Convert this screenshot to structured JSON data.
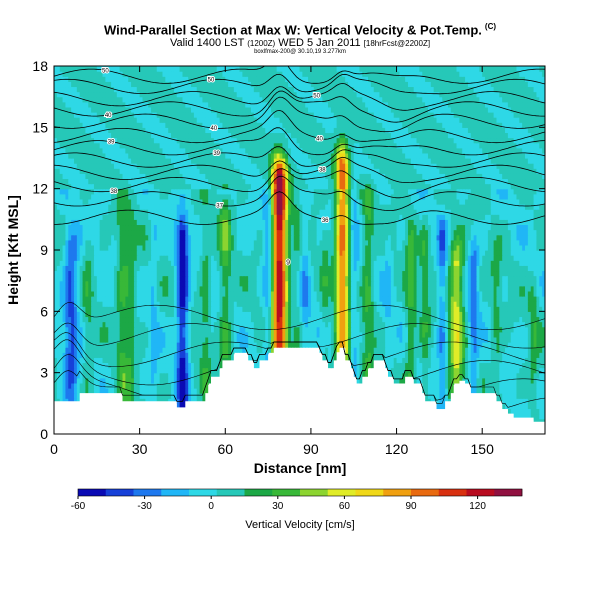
{
  "header": {
    "title": "Wind-Parallel Section at Max W: Vertical Velocity & Pot.Temp.",
    "copyright": "(C)",
    "valid_main": "Valid 1400 LST",
    "valid_z": "(1200Z)",
    "valid_date": "WED 5 Jan 2011",
    "valid_grid": "[18hrFcst@2200Z]",
    "credit": "boxlfmax-200@ 30.10,19 3.277km"
  },
  "chart_data": {
    "type": "heatmap",
    "xlabel": "Distance [nm]",
    "ylabel": "Height [Kft MSL]",
    "xlim": [
      0,
      172
    ],
    "ylim": [
      0,
      18
    ],
    "xticks": [
      0,
      30,
      60,
      90,
      120,
      150
    ],
    "yticks": [
      0,
      3,
      6,
      9,
      12,
      15,
      18
    ],
    "colorbar": {
      "label": "Vertical Velocity [cm/s]",
      "range": [
        -60,
        140
      ],
      "ticks": [
        -60,
        -30,
        0,
        30,
        60,
        90,
        120
      ],
      "colors": [
        "#0a0ab4",
        "#1640d8",
        "#1e78ee",
        "#20b6f6",
        "#2ed8e6",
        "#26c8b8",
        "#1ca846",
        "#38b838",
        "#8cd430",
        "#e0ec28",
        "#f0d818",
        "#f0a010",
        "#e86a10",
        "#d83010",
        "#b80c20",
        "#901040"
      ]
    },
    "terrain_height": [
      1.6,
      1.6,
      1.6,
      1.6,
      1.6,
      1.6,
      1.6,
      1.6,
      1.6,
      2.0,
      2.0,
      2.0,
      2.0,
      2.0,
      2.0,
      2.0,
      2.0,
      2.0,
      2.0,
      2.0,
      2.0,
      2.0,
      2.0,
      2.0,
      1.6,
      1.6,
      1.6,
      1.6,
      1.6,
      1.6,
      1.6,
      1.6,
      1.6,
      1.6,
      1.6,
      1.6,
      1.6,
      1.6,
      1.6,
      1.6,
      1.6,
      1.6,
      1.6,
      1.3,
      1.3,
      1.3,
      1.6,
      1.6,
      1.6,
      1.6,
      1.6,
      1.6,
      1.6,
      2.0,
      2.4,
      2.8,
      2.8,
      2.8,
      3.2,
      3.6,
      3.6,
      3.6,
      3.6,
      3.9,
      3.9,
      3.9,
      3.9,
      3.9,
      3.6,
      3.6,
      3.2,
      3.2,
      3.6,
      3.6,
      3.6,
      3.9,
      3.9,
      4.2,
      4.2,
      4.2,
      4.2,
      4.2,
      4.2,
      4.2,
      4.2,
      4.2,
      4.2,
      4.2,
      4.2,
      4.2,
      4.2,
      4.2,
      4.2,
      3.9,
      3.6,
      3.6,
      3.2,
      3.2,
      3.6,
      4.0,
      4.2,
      4.2,
      3.6,
      3.6,
      3.2,
      2.8,
      2.4,
      2.4,
      2.8,
      2.8,
      3.2,
      3.2,
      3.6,
      3.6,
      3.6,
      3.6,
      3.2,
      2.8,
      2.8,
      2.4,
      2.4,
      2.4,
      2.4,
      2.8,
      2.8,
      2.8,
      2.4,
      2.4,
      2.4,
      2.0,
      1.6,
      1.6,
      1.6,
      1.6,
      1.2,
      1.2,
      1.2,
      1.6,
      1.6,
      2.0,
      2.4,
      2.4,
      2.6,
      2.6,
      2.4,
      2.4,
      2.0,
      2.0,
      2.0,
      2.0,
      2.0,
      2.0,
      2.0,
      2.0,
      2.0,
      1.6,
      1.6,
      1.2,
      1.2,
      1.0,
      1.0,
      0.8,
      0.8,
      0.8,
      0.8,
      0.8,
      0.8,
      0.8,
      0.6,
      0.6,
      0.6,
      0.6
    ],
    "updrafts": [
      {
        "x": 79,
        "top": 12.3,
        "amp": 135,
        "width": 2.6
      },
      {
        "x": 101,
        "top": 13.0,
        "amp": 95,
        "width": 2.3
      },
      {
        "x": 141,
        "top": 8.3,
        "amp": 60,
        "width": 2.4
      },
      {
        "x": 60,
        "top": 10.5,
        "amp": 30,
        "width": 2.0
      },
      {
        "x": 110,
        "top": 11.0,
        "amp": 28,
        "width": 2.0
      },
      {
        "x": 24,
        "top": 10.0,
        "amp": 28,
        "width": 2.0
      },
      {
        "x": 27,
        "top": 9.5,
        "amp": 22,
        "width": 1.8
      },
      {
        "x": 53,
        "top": 9.5,
        "amp": 22,
        "width": 1.6
      },
      {
        "x": 125,
        "top": 9.5,
        "amp": 30,
        "width": 1.8
      },
      {
        "x": 85,
        "top": 10.5,
        "amp": 12,
        "width": 1.5
      },
      {
        "x": 12,
        "top": 9.0,
        "amp": 15,
        "width": 1.6
      },
      {
        "x": 130,
        "top": 9.0,
        "amp": 22,
        "width": 1.6
      },
      {
        "x": 155,
        "top": 8.0,
        "amp": 18,
        "width": 1.8
      },
      {
        "x": 95,
        "top": 9.0,
        "amp": 15,
        "width": 1.4
      },
      {
        "x": 168,
        "top": 6.5,
        "amp": 20,
        "width": 1.6
      }
    ],
    "downdrafts": [
      {
        "x": 6,
        "top": 9.0,
        "amp": -42,
        "width": 2.5
      },
      {
        "x": 45,
        "top": 9.5,
        "amp": -62,
        "width": 2.0
      },
      {
        "x": 75,
        "top": 10.5,
        "amp": -28,
        "width": 1.6
      },
      {
        "x": 88,
        "top": 10.0,
        "amp": -20,
        "width": 1.6
      },
      {
        "x": 105,
        "top": 11.5,
        "amp": -18,
        "width": 1.6
      },
      {
        "x": 136,
        "top": 9.5,
        "amp": -28,
        "width": 1.6
      },
      {
        "x": 147,
        "top": 8.5,
        "amp": -30,
        "width": 1.8
      },
      {
        "x": 35,
        "top": 9.5,
        "amp": -15,
        "width": 1.6
      },
      {
        "x": 117,
        "top": 9.5,
        "amp": -12,
        "width": 1.4
      }
    ],
    "theta_levels": [
      {
        "height": 17.5,
        "label": "50"
      },
      {
        "height": 17.0,
        "label": "50"
      },
      {
        "height": 16.4,
        "label": "50"
      },
      {
        "height": 15.9,
        "label": "40"
      },
      {
        "height": 15.3,
        "label": "40"
      },
      {
        "height": 14.6,
        "label": "40"
      },
      {
        "height": 14.0,
        "label": "39"
      },
      {
        "height": 13.4,
        "label": "39"
      },
      {
        "height": 12.8,
        "label": "38"
      },
      {
        "height": 12.2,
        "label": "38"
      },
      {
        "height": 11.5,
        "label": "37"
      },
      {
        "height": 10.6,
        "label": "36"
      }
    ],
    "theta_label_value": "9"
  }
}
